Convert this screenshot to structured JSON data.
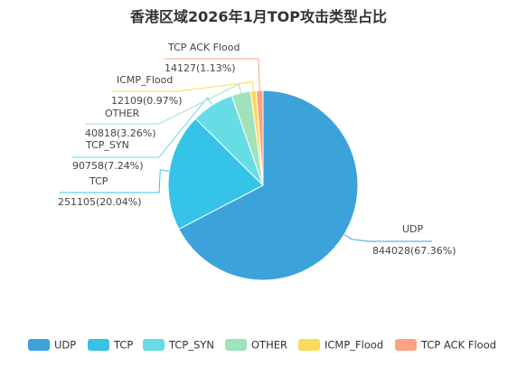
{
  "chart_data": {
    "type": "pie",
    "title": "香港区域2026年1月TOP攻击类型占比",
    "legend_position": "bottom",
    "slices": [
      {
        "name": "UDP",
        "value": 844028,
        "percent_label": "844028(67.36%)",
        "color": "#3BA3DA"
      },
      {
        "name": "TCP",
        "value": 251105,
        "percent_label": "251105(20.04%)",
        "color": "#35C3E8"
      },
      {
        "name": "TCP_SYN",
        "value": 90758,
        "percent_label": "90758(7.24%)",
        "color": "#66DDE5"
      },
      {
        "name": "OTHER",
        "value": 40818,
        "percent_label": "40818(3.26%)",
        "color": "#A0E2BB"
      },
      {
        "name": "ICMP_Flood",
        "value": 12109,
        "percent_label": "12109(0.97%)",
        "color": "#F9DB5C"
      },
      {
        "name": "TCP ACK Flood",
        "value": 14127,
        "percent_label": "14127(1.13%)",
        "color": "#FCA281"
      }
    ]
  }
}
